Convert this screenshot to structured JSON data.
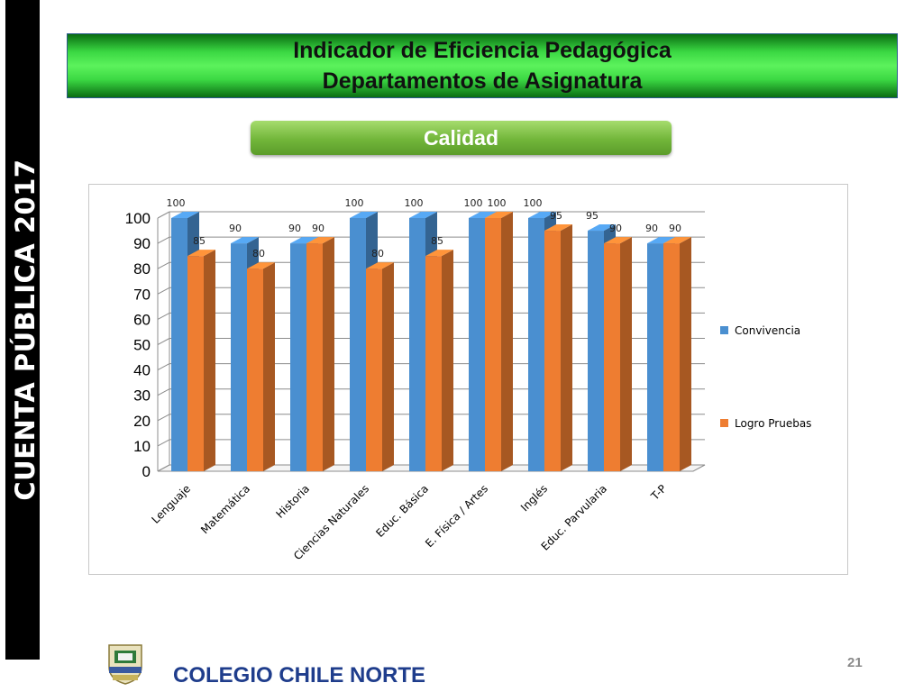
{
  "sidebar": {
    "text": "CUENTA  PÚBLICA  2017"
  },
  "header": {
    "title_line1": "Indicador de Eficiencia Pedagógica",
    "title_line2": "Departamentos de Asignatura"
  },
  "badge": {
    "label": "Calidad"
  },
  "footer": {
    "school_name": "COLEGIO CHILE NORTE",
    "page_number": "21"
  },
  "colors": {
    "series1": "#4a8fd0",
    "series2": "#ee7d31",
    "banner_green": "#3bd843",
    "badge_green": "#72b63a",
    "footer_blue": "#1f3d8c"
  },
  "chart_data": {
    "type": "bar",
    "style": "3d-clustered-column",
    "title": "",
    "xlabel": "",
    "ylabel": "",
    "ylim": [
      0,
      100
    ],
    "yticks": [
      0,
      10,
      20,
      30,
      40,
      50,
      60,
      70,
      80,
      90,
      100
    ],
    "grid": true,
    "legend_position": "right",
    "categories": [
      "Lenguaje",
      "Matemática",
      "Historia",
      "Ciencias Naturales",
      "Educ. Básica",
      "E. Física / Artes",
      "Inglés",
      "Educ. Parvularia",
      "T-P"
    ],
    "series": [
      {
        "name": "Convivencia",
        "color": "#4a8fd0",
        "values": [
          100,
          90,
          90,
          100,
          100,
          100,
          100,
          95,
          90
        ]
      },
      {
        "name": "Logro Pruebas",
        "color": "#ee7d31",
        "values": [
          85,
          80,
          90,
          80,
          85,
          100,
          95,
          90,
          90
        ]
      }
    ]
  }
}
